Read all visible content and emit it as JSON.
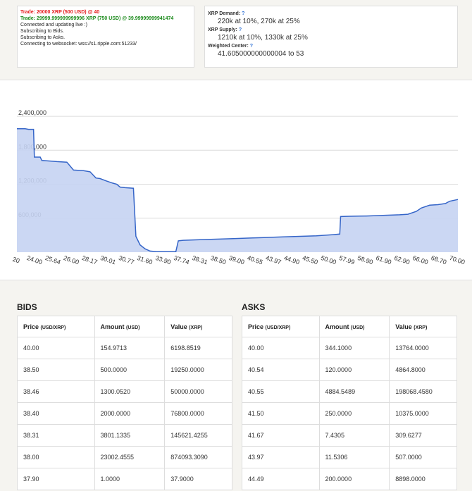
{
  "log": {
    "lines": [
      {
        "text": "Trade: 20000 XRP (500 USD) @ 40",
        "kind": "red"
      },
      {
        "text": "Trade: 29999.999999999996 XRP (750 USD) @ 39.99999999941474",
        "kind": "green"
      },
      {
        "text": "Connected and updating live :)",
        "kind": "normal"
      },
      {
        "text": "Subscribing to Bids.",
        "kind": "normal"
      },
      {
        "text": "Subscribing to Asks.",
        "kind": "normal"
      },
      {
        "text": "Connecting to websocket: wss://s1.ripple.com:51233/",
        "kind": "normal"
      }
    ]
  },
  "stats": {
    "demand_label": "XRP Demand:",
    "demand_value": "220k at 10%, 270k at 25%",
    "supply_label": "XRP Supply:",
    "supply_value": "1210k at 10%, 1330k at 25%",
    "center_label": "Weighted Center:",
    "center_value": "41.605000000000004 to 53",
    "help_mark": "?"
  },
  "colors": {
    "fill": "#c5d3f2",
    "line": "#3565c8",
    "grid": "#dcdcdc",
    "help": "#2a6fd6"
  },
  "chart_data": {
    "type": "area",
    "ylim": [
      0,
      2600000
    ],
    "y_ticks": [
      "600,000",
      "1,200,000",
      "1,800,000",
      "2,400,000"
    ],
    "y_tick_values": [
      600000,
      1200000,
      1800000,
      2400000
    ],
    "x_tick_labels": [
      "20",
      "24.00",
      "25.64",
      "26.00",
      "28.17",
      "30.01",
      "30.77",
      "31.60",
      "33.90",
      "37.74",
      "38.31",
      "38.50",
      "39.00",
      "40.55",
      "43.97",
      "44.90",
      "45.50",
      "50.00",
      "57.99",
      "58.90",
      "61.90",
      "62.90",
      "66.00",
      "68.70",
      "70.00"
    ],
    "series": [
      {
        "values": [
          [
            0,
            2180000
          ],
          [
            0.5,
            2180000
          ],
          [
            0.7,
            2170000
          ],
          [
            1.0,
            2170000
          ],
          [
            1.05,
            1680000
          ],
          [
            1.4,
            1680000
          ],
          [
            1.5,
            1620000
          ],
          [
            2.0,
            1610000
          ],
          [
            2.4,
            1600000
          ],
          [
            3.0,
            1590000
          ],
          [
            3.4,
            1450000
          ],
          [
            4.0,
            1440000
          ],
          [
            4.4,
            1420000
          ],
          [
            4.75,
            1310000
          ],
          [
            5.0,
            1300000
          ],
          [
            5.35,
            1260000
          ],
          [
            5.75,
            1220000
          ],
          [
            6.0,
            1200000
          ],
          [
            6.2,
            1150000
          ],
          [
            6.5,
            1140000
          ],
          [
            7.0,
            1130000
          ],
          [
            7.15,
            280000
          ],
          [
            7.4,
            130000
          ],
          [
            7.7,
            60000
          ],
          [
            8.0,
            20000
          ],
          [
            8.4,
            10000
          ],
          [
            9.0,
            10000
          ],
          [
            9.55,
            10000
          ],
          [
            9.7,
            200000
          ],
          [
            10.0,
            210000
          ],
          [
            11.0,
            220000
          ],
          [
            12.0,
            230000
          ],
          [
            13.0,
            240000
          ],
          [
            14.0,
            250000
          ],
          [
            15.0,
            260000
          ],
          [
            16.0,
            270000
          ],
          [
            17.0,
            280000
          ],
          [
            18.0,
            290000
          ],
          [
            19.0,
            310000
          ],
          [
            19.4,
            320000
          ],
          [
            19.45,
            630000
          ],
          [
            20.0,
            635000
          ],
          [
            21.0,
            640000
          ],
          [
            22.0,
            650000
          ],
          [
            23.0,
            660000
          ],
          [
            23.5,
            670000
          ],
          [
            24.0,
            720000
          ],
          [
            24.3,
            780000
          ],
          [
            24.8,
            830000
          ],
          [
            25.3,
            840000
          ],
          [
            25.75,
            860000
          ],
          [
            26.0,
            900000
          ],
          [
            26.5,
            930000
          ]
        ]
      }
    ],
    "x_range": [
      0,
      26.5
    ]
  },
  "bids": {
    "title": "BIDS",
    "headers": [
      {
        "label": "Price",
        "unit": "(USD/XRP)"
      },
      {
        "label": "Amount",
        "unit": "(USD)"
      },
      {
        "label": "Value",
        "unit": "(XRP)"
      }
    ],
    "rows": [
      [
        "40.00",
        "154.9713",
        "6198.8519"
      ],
      [
        "38.50",
        "500.0000",
        "19250.0000"
      ],
      [
        "38.46",
        "1300.0520",
        "50000.0000"
      ],
      [
        "38.40",
        "2000.0000",
        "76800.0000"
      ],
      [
        "38.31",
        "3801.1335",
        "145621.4255"
      ],
      [
        "38.00",
        "23002.4555",
        "874093.3090"
      ],
      [
        "37.90",
        "1.0000",
        "37.9000"
      ]
    ]
  },
  "asks": {
    "title": "ASKS",
    "headers": [
      {
        "label": "Price",
        "unit": "(USD/XRP)"
      },
      {
        "label": "Amount",
        "unit": "(USD)"
      },
      {
        "label": "Value",
        "unit": "(XRP)"
      }
    ],
    "rows": [
      [
        "40.00",
        "344.1000",
        "13764.0000"
      ],
      [
        "40.54",
        "120.0000",
        "4864.8000"
      ],
      [
        "40.55",
        "4884.5489",
        "198068.4580"
      ],
      [
        "41.50",
        "250.0000",
        "10375.0000"
      ],
      [
        "41.67",
        "7.4305",
        "309.6277"
      ],
      [
        "43.97",
        "11.5306",
        "507.0000"
      ],
      [
        "44.49",
        "200.0000",
        "8898.0000"
      ]
    ]
  }
}
